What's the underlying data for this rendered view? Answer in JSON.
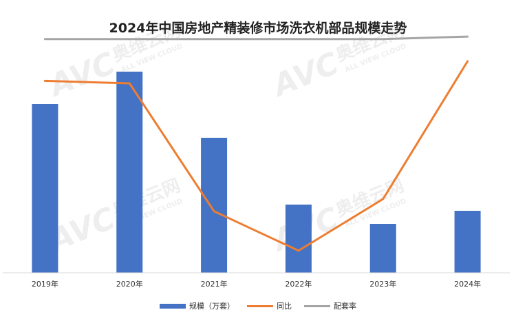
{
  "chart_data": {
    "type": "bar",
    "title": "2024年中国房地产精装修市场洗衣机部品规模走势",
    "categories": [
      "2019年",
      "2020年",
      "2021年",
      "2022年",
      "2023年",
      "2024年"
    ],
    "series": [
      {
        "name": "规模（万套）",
        "kind": "bar",
        "color": "#4472C4",
        "values": [
          245,
          292,
          196,
          99,
          71,
          90
        ]
      },
      {
        "name": "同比",
        "kind": "line",
        "color": "#ED7D31",
        "values": [
          0.2,
          0.19,
          -0.33,
          -0.49,
          -0.28,
          0.28
        ]
      },
      {
        "name": "配套率",
        "kind": "line",
        "color": "#A5A5A5",
        "values": [
          0.37,
          0.37,
          0.37,
          0.37,
          0.37,
          0.38
        ]
      }
    ],
    "ylim_bar": [
      0,
      300
    ],
    "ylim_line": [
      -0.58,
      0.26
    ],
    "grid": false,
    "legend": "bottom"
  },
  "watermark": {
    "brand": "AVC",
    "cn": "奥维云网",
    "en": "ALL VIEW CLOUD"
  }
}
